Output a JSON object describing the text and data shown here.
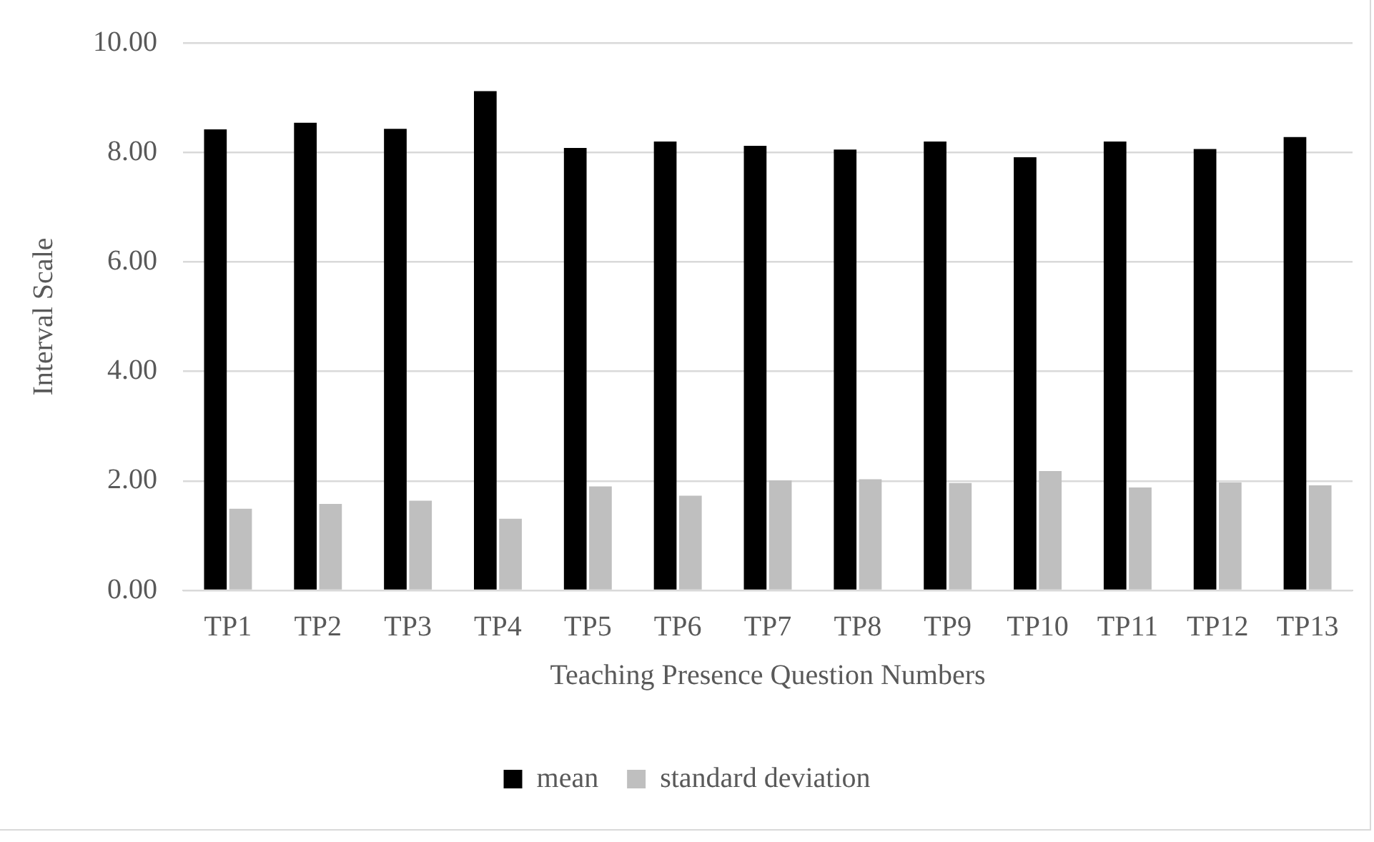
{
  "chart_data": {
    "type": "bar",
    "xlabel": "Teaching Presence Question Numbers",
    "ylabel": "Interval Scale",
    "categories": [
      "TP1",
      "TP2",
      "TP3",
      "TP4",
      "TP5",
      "TP6",
      "TP7",
      "TP8",
      "TP9",
      "TP10",
      "TP11",
      "TP12",
      "TP13"
    ],
    "series": [
      {
        "name": "mean",
        "color": "#000000",
        "values": [
          8.42,
          8.54,
          8.43,
          9.12,
          8.08,
          8.2,
          8.12,
          8.05,
          8.2,
          7.91,
          8.2,
          8.06,
          8.28
        ]
      },
      {
        "name": "standard deviation",
        "color": "#bfbfbf",
        "values": [
          1.49,
          1.58,
          1.64,
          1.31,
          1.9,
          1.73,
          2.01,
          2.03,
          1.96,
          2.18,
          1.88,
          1.97,
          1.92
        ]
      }
    ],
    "ylim": [
      0,
      10
    ],
    "yticks": [
      {
        "value": 0,
        "label": "0.00"
      },
      {
        "value": 2,
        "label": "2.00"
      },
      {
        "value": 4,
        "label": "4.00"
      },
      {
        "value": 6,
        "label": "6.00"
      },
      {
        "value": 8,
        "label": "8.00"
      },
      {
        "value": 10,
        "label": "10.00"
      }
    ],
    "grid": "y",
    "legend": "bottom"
  }
}
